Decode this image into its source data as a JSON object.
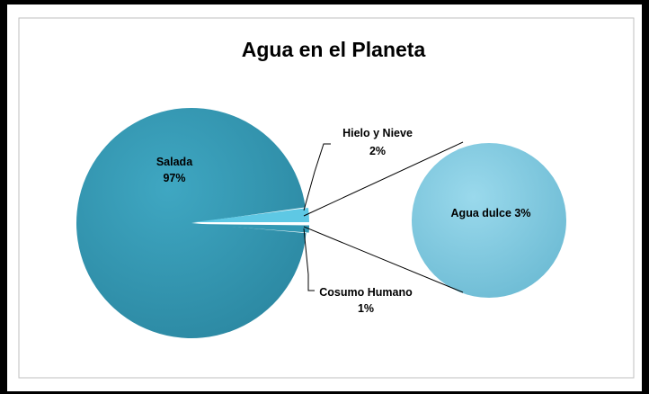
{
  "chart_data": {
    "type": "pie",
    "subtype": "pie-of-pie",
    "title": "Agua en el Planeta",
    "main_pie": {
      "slices": [
        {
          "name": "Salada",
          "value": 97,
          "label": "97%",
          "color": "#3399b4"
        },
        {
          "name": "Hielo y Nieve",
          "value": 2,
          "label": "2%",
          "color": "#5ec8e4"
        },
        {
          "name": "Cosumo Humano",
          "value": 1,
          "label": "1%",
          "color": "#3399b4"
        }
      ]
    },
    "secondary_pie": {
      "name": "Agua dulce",
      "value": 3,
      "label": "Agua dulce 3%",
      "color": "#7dcde3"
    },
    "legend": "none",
    "grid": false
  }
}
